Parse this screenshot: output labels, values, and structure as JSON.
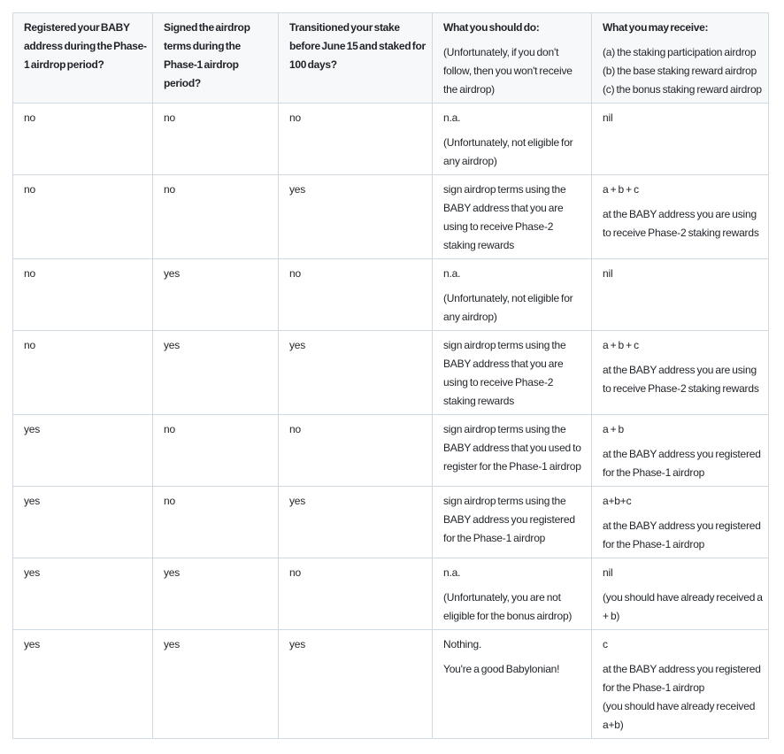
{
  "colors": {
    "text": "#1f2328",
    "border": "#d1d9e0",
    "header_background": "#f6f8fa",
    "row_background": "#ffffff"
  },
  "table": {
    "headers": [
      {
        "paragraphs": [
          {
            "bold": true,
            "lines": [
              "Registered your BABY address during the Phase-1 airdrop period?"
            ]
          }
        ]
      },
      {
        "paragraphs": [
          {
            "bold": true,
            "lines": [
              "Signed the airdrop terms during the Phase-1 airdrop period?"
            ]
          }
        ]
      },
      {
        "paragraphs": [
          {
            "bold": true,
            "lines": [
              "Transitioned your stake before June 15 and staked for 100 days?"
            ]
          }
        ]
      },
      {
        "paragraphs": [
          {
            "bold": true,
            "lines": [
              "What you should do:"
            ]
          },
          {
            "bold": false,
            "lines": [
              "(Unfortunately, if you don't follow, then you won't receive the airdrop)"
            ]
          }
        ]
      },
      {
        "paragraphs": [
          {
            "bold": true,
            "lines": [
              "What you may receive:"
            ]
          },
          {
            "bold": false,
            "lines": [
              "(a) the staking participation airdrop",
              "(b) the base staking reward airdrop",
              "(c) the bonus staking reward airdrop"
            ]
          }
        ]
      }
    ],
    "rows": [
      {
        "cells": [
          [
            [
              "no"
            ]
          ],
          [
            [
              "no"
            ]
          ],
          [
            [
              "no"
            ]
          ],
          [
            [
              "n.a."
            ],
            [
              "(Unfortunately, not eligible for any airdrop)"
            ]
          ],
          [
            [
              "nil"
            ]
          ]
        ]
      },
      {
        "cells": [
          [
            [
              "no"
            ]
          ],
          [
            [
              "no"
            ]
          ],
          [
            [
              "yes"
            ]
          ],
          [
            [
              "sign airdrop terms using the BABY address that you are using to receive Phase-2 staking rewards"
            ]
          ],
          [
            [
              "a + b + c"
            ],
            [
              "at the BABY address you are using to receive Phase-2 staking rewards"
            ]
          ]
        ]
      },
      {
        "cells": [
          [
            [
              "no"
            ]
          ],
          [
            [
              "yes"
            ]
          ],
          [
            [
              "no"
            ]
          ],
          [
            [
              "n.a."
            ],
            [
              "(Unfortunately, not eligible for any airdrop)"
            ]
          ],
          [
            [
              "nil"
            ]
          ]
        ]
      },
      {
        "cells": [
          [
            [
              "no"
            ]
          ],
          [
            [
              "yes"
            ]
          ],
          [
            [
              "yes"
            ]
          ],
          [
            [
              "sign airdrop terms using the BABY address that you are using to receive Phase-2 staking rewards"
            ]
          ],
          [
            [
              "a + b + c"
            ],
            [
              "at the BABY address you are using to receive Phase-2 staking rewards"
            ]
          ]
        ]
      },
      {
        "cells": [
          [
            [
              "yes"
            ]
          ],
          [
            [
              "no"
            ]
          ],
          [
            [
              "no"
            ]
          ],
          [
            [
              "sign airdrop terms using the BABY address that you used to register for the Phase-1 airdrop"
            ]
          ],
          [
            [
              "a + b"
            ],
            [
              "at the BABY address you registered for the Phase-1 airdrop"
            ]
          ]
        ]
      },
      {
        "cells": [
          [
            [
              "yes"
            ]
          ],
          [
            [
              "no"
            ]
          ],
          [
            [
              "yes"
            ]
          ],
          [
            [
              "sign airdrop terms using the BABY address you registered for the Phase-1 airdrop"
            ]
          ],
          [
            [
              "a+b+c"
            ],
            [
              "at the BABY address you registered for the Phase-1 airdrop"
            ]
          ]
        ]
      },
      {
        "cells": [
          [
            [
              "yes"
            ]
          ],
          [
            [
              "yes"
            ]
          ],
          [
            [
              "no"
            ]
          ],
          [
            [
              "n.a."
            ],
            [
              "(Unfortunately, you are not eligible for the bonus airdrop)"
            ]
          ],
          [
            [
              "nil"
            ],
            [
              "(you should have already received a + b)"
            ]
          ]
        ]
      },
      {
        "cells": [
          [
            [
              "yes"
            ]
          ],
          [
            [
              "yes"
            ]
          ],
          [
            [
              "yes"
            ]
          ],
          [
            [
              "Nothing."
            ],
            [
              "You're a good Babylonian!"
            ]
          ],
          [
            [
              "c"
            ],
            [
              "at the BABY address you registered for the Phase-1 airdrop",
              "(you should have already received a+b)"
            ]
          ]
        ]
      }
    ]
  }
}
